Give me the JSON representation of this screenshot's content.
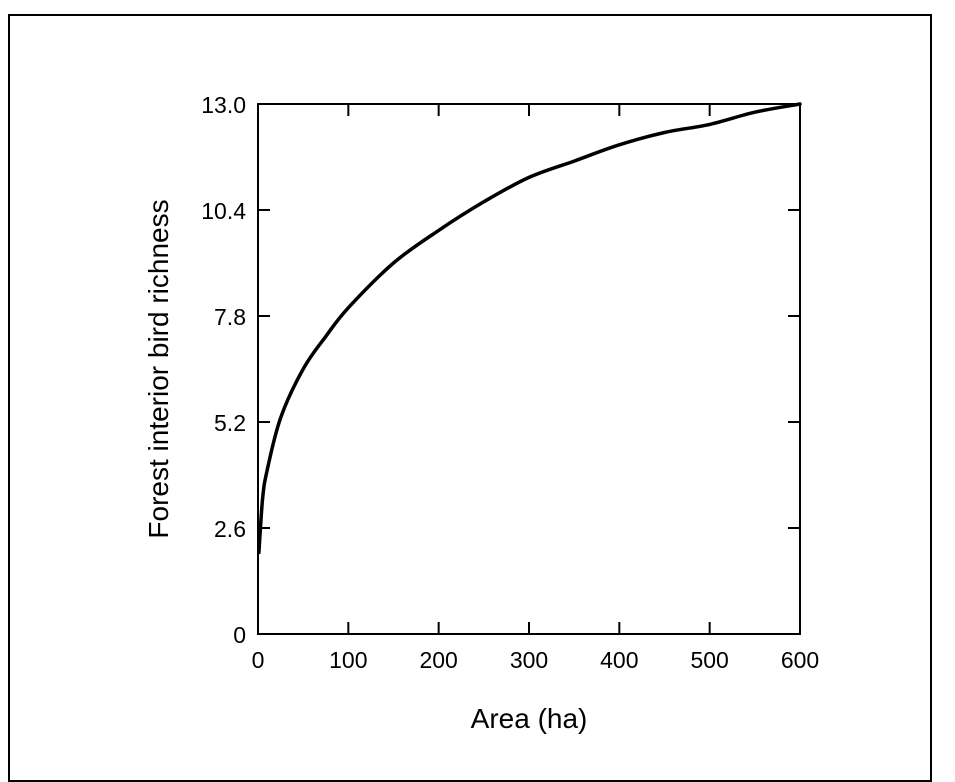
{
  "chart_data": {
    "type": "line",
    "xlabel": "Area (ha)",
    "ylabel": "Forest interior bird richness",
    "xlim": [
      0,
      600
    ],
    "ylim": [
      0,
      13.0
    ],
    "x_ticks": [
      "0",
      "100",
      "200",
      "300",
      "400",
      "500",
      "600"
    ],
    "y_ticks": [
      "0",
      "2.6",
      "5.2",
      "7.8",
      "10.4",
      "13.0"
    ],
    "grid": false,
    "legend": "none",
    "series": [
      {
        "x": [
          1,
          5,
          10,
          25,
          50,
          75,
          100,
          150,
          200,
          250,
          300,
          350,
          400,
          450,
          500,
          550,
          600
        ],
        "values": [
          2.0,
          3.3,
          4.0,
          5.3,
          6.5,
          7.3,
          8.0,
          9.1,
          9.9,
          10.6,
          11.2,
          11.6,
          12.0,
          12.3,
          12.5,
          12.8,
          13.0
        ],
        "color": "#000000"
      }
    ]
  }
}
